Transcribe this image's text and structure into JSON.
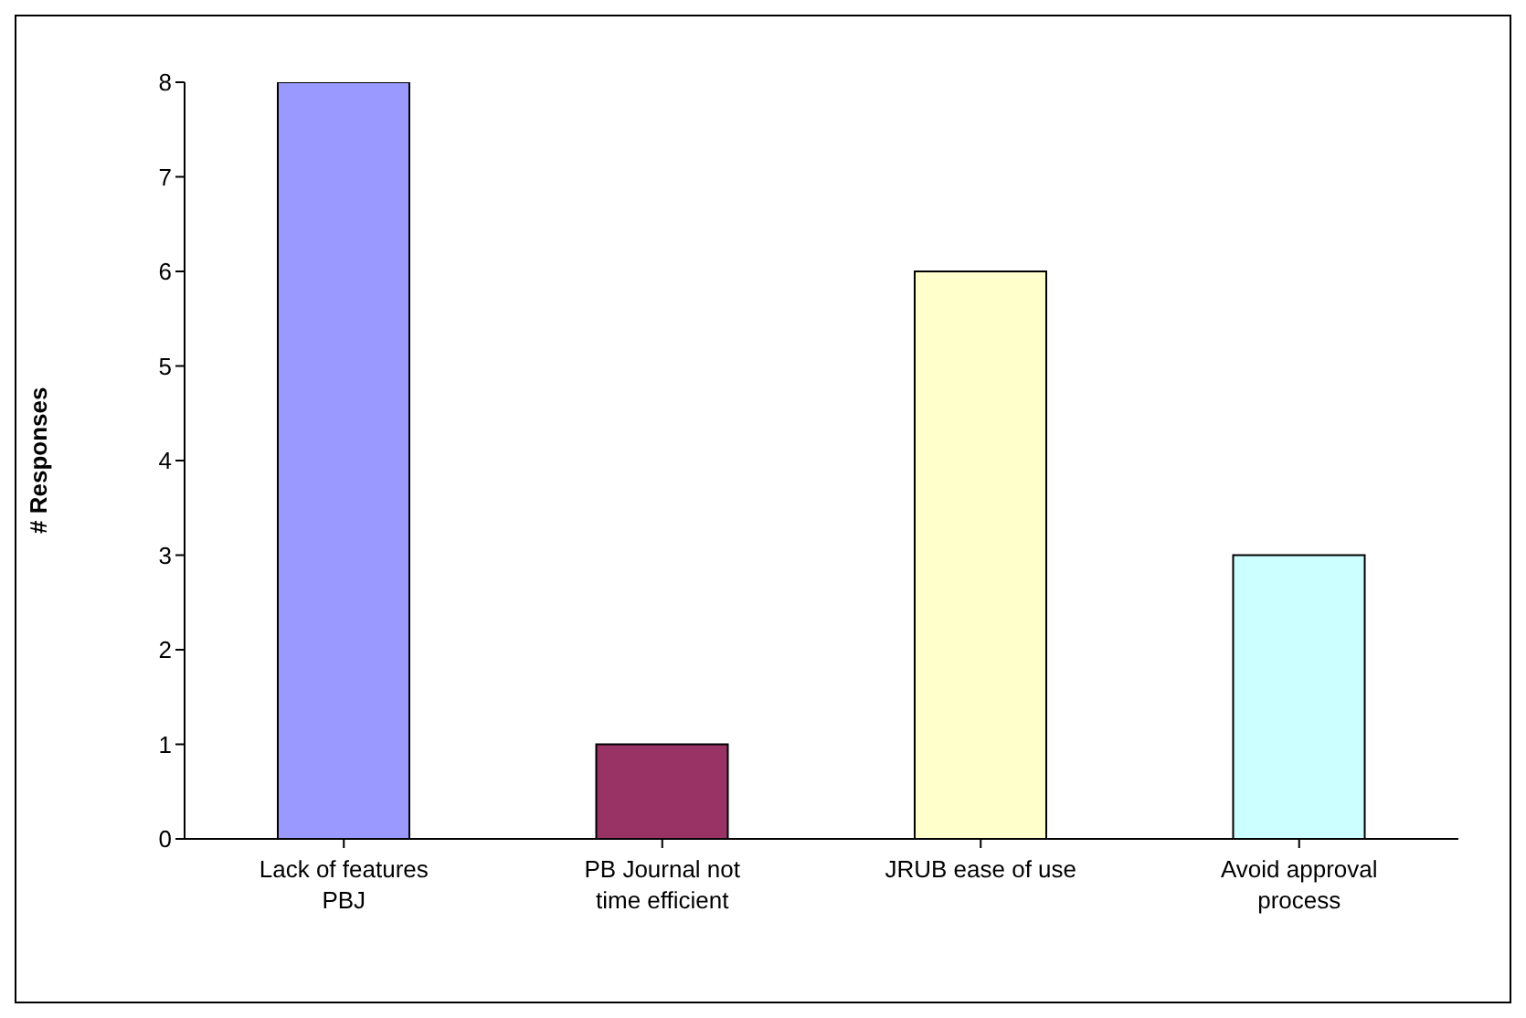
{
  "chart_data": {
    "type": "bar",
    "ylabel": "# Responses",
    "categories": [
      "Lack of features PBJ",
      "PB Journal not time efficient",
      "JRUB ease of use",
      "Avoid approval process"
    ],
    "values": [
      8,
      1,
      6,
      3
    ],
    "colors": [
      "#9999ff",
      "#993366",
      "#ffffcc",
      "#ccffff"
    ],
    "ylim": [
      0,
      8
    ],
    "yticks": [
      0,
      1,
      2,
      3,
      4,
      5,
      6,
      7,
      8
    ],
    "grid": false,
    "legend": false
  }
}
